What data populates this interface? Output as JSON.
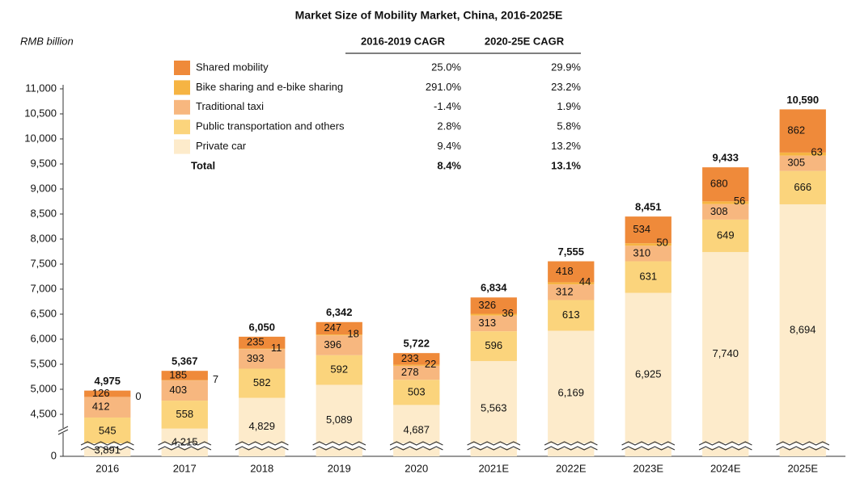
{
  "chart_data": {
    "type": "stacked_bar",
    "title": "Market Size of Mobility Market, China, 2016-2025E",
    "y_axis_label": "RMB billion",
    "categories": [
      "2016",
      "2017",
      "2018",
      "2019",
      "2020",
      "2021E",
      "2022E",
      "2023E",
      "2024E",
      "2025E"
    ],
    "series": [
      {
        "name": "Private car",
        "color": "#fdebcb",
        "values": [
          3891,
          4215,
          4829,
          5089,
          4687,
          5563,
          6169,
          6925,
          7740,
          8694
        ],
        "value_labels": [
          "3,891",
          "4,215",
          "4,829",
          "5,089",
          "4,687",
          "5,563",
          "6,169",
          "6,925",
          "7,740",
          "8,694"
        ],
        "cagr": [
          "9.4%",
          "13.2%"
        ]
      },
      {
        "name": "Public transportation and others",
        "color": "#fbd47c",
        "values": [
          545,
          558,
          582,
          592,
          503,
          596,
          613,
          631,
          649,
          666
        ],
        "cagr": [
          "2.8%",
          "5.8%"
        ]
      },
      {
        "name": "Traditional taxi",
        "color": "#f7b77f",
        "values": [
          412,
          403,
          393,
          396,
          278,
          313,
          312,
          310,
          308,
          305
        ],
        "cagr": [
          "-1.4%",
          "1.9%"
        ]
      },
      {
        "name": "Bike sharing and e-bike sharing",
        "color": "#f6b443",
        "values": [
          0,
          7,
          11,
          18,
          22,
          36,
          44,
          50,
          56,
          63
        ],
        "cagr": [
          "291.0%",
          "23.2%"
        ]
      },
      {
        "name": "Shared mobility",
        "color": "#ef8a3a",
        "values": [
          126,
          185,
          235,
          247,
          233,
          326,
          418,
          534,
          680,
          862
        ],
        "cagr": [
          "25.0%",
          "29.9%"
        ]
      }
    ],
    "totals": [
      4975,
      5367,
      6050,
      6342,
      5722,
      6834,
      7555,
      8451,
      9433,
      10590
    ],
    "totals_labels": [
      "4,975",
      "5,367",
      "6,050",
      "6,342",
      "5,722",
      "6,834",
      "7,555",
      "8,451",
      "9,433",
      "10,590"
    ],
    "cagr_headers": [
      "2016-2019 CAGR",
      "2020-25E CAGR"
    ],
    "total_label": "Total",
    "total_cagr": [
      "8.4%",
      "13.1%"
    ],
    "ylim": [
      0,
      11000
    ],
    "axis_break": true,
    "yticks": [
      0,
      {
        "value": 4500,
        "label": "4,500"
      },
      {
        "value": 5000,
        "label": "5,000"
      },
      {
        "value": 5500,
        "label": "5,500"
      },
      {
        "value": 6000,
        "label": "6,000"
      },
      {
        "value": 6500,
        "label": "6,500"
      },
      {
        "value": 7000,
        "label": "7,000"
      },
      {
        "value": 7500,
        "label": "7,500"
      },
      {
        "value": 8000,
        "label": "8,000"
      },
      {
        "value": 8500,
        "label": "8,500"
      },
      {
        "value": 9000,
        "label": "9,000"
      },
      {
        "value": 9500,
        "label": "9,500"
      },
      {
        "value": 10000,
        "label": "10,000"
      },
      {
        "value": 10500,
        "label": "10,500"
      },
      {
        "value": 11000,
        "label": "11,000"
      }
    ],
    "grid": false
  }
}
